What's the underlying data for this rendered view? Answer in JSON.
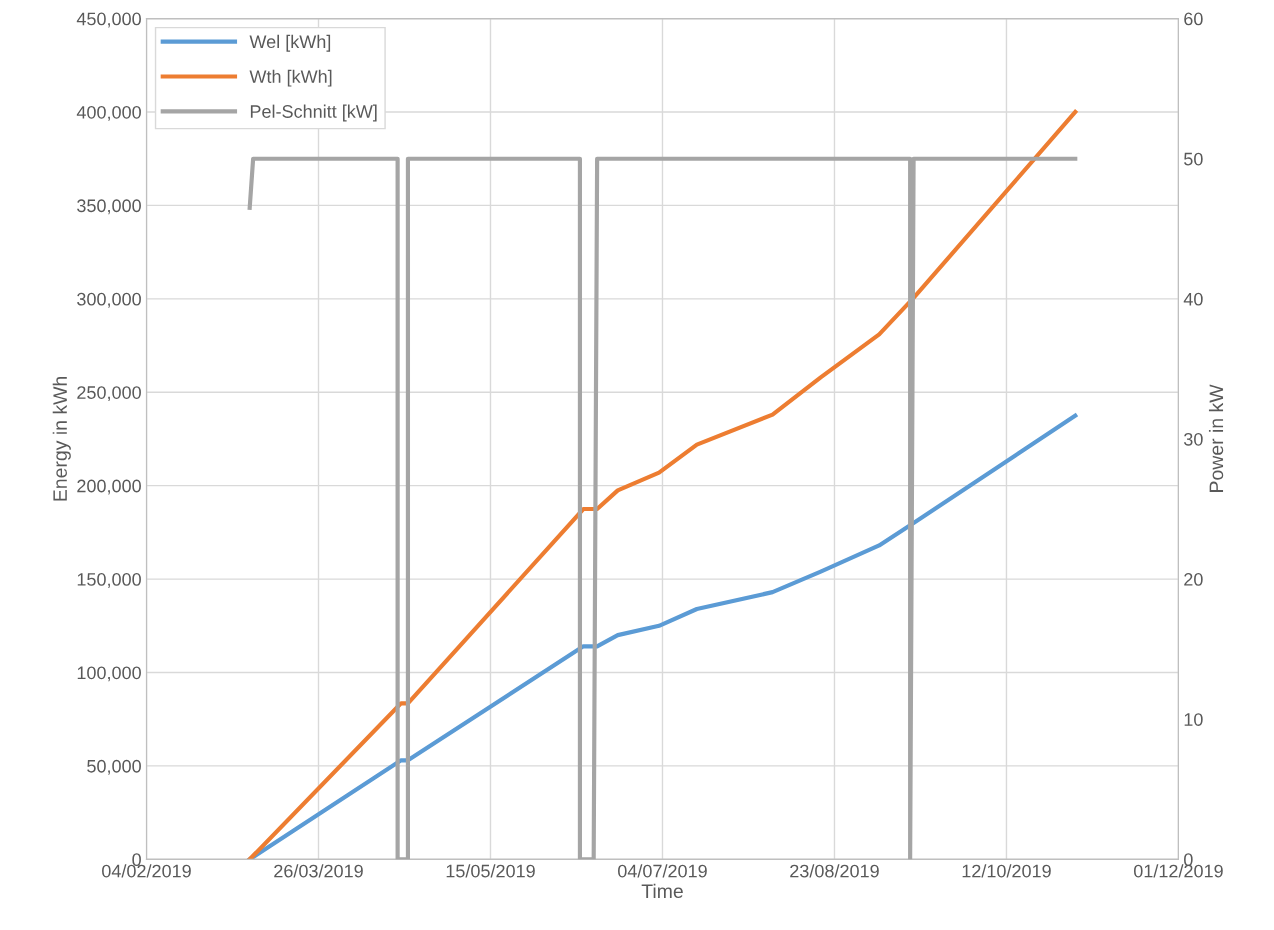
{
  "chart_data": {
    "type": "line",
    "xlabel": "Time",
    "ylabel": "Energy in kWh",
    "y2label": "Power in kW",
    "xlim": [
      "2019-02-04",
      "2019-12-01"
    ],
    "xticks": [
      {
        "value": "2019-02-04",
        "label": "04/02/2019"
      },
      {
        "value": "2019-03-26",
        "label": "26/03/2019"
      },
      {
        "value": "2019-05-15",
        "label": "15/05/2019"
      },
      {
        "value": "2019-07-04",
        "label": "04/07/2019"
      },
      {
        "value": "2019-08-23",
        "label": "23/08/2019"
      },
      {
        "value": "2019-10-12",
        "label": "12/10/2019"
      },
      {
        "value": "2019-12-01",
        "label": "01/12/2019"
      }
    ],
    "ylim": [
      0,
      450000
    ],
    "yticks": [
      {
        "value": 0,
        "label": "0"
      },
      {
        "value": 50000,
        "label": "50,000"
      },
      {
        "value": 100000,
        "label": "100,000"
      },
      {
        "value": 150000,
        "label": "150,000"
      },
      {
        "value": 200000,
        "label": "200,000"
      },
      {
        "value": 250000,
        "label": "250,000"
      },
      {
        "value": 300000,
        "label": "300,000"
      },
      {
        "value": 350000,
        "label": "350,000"
      },
      {
        "value": 400000,
        "label": "400,000"
      },
      {
        "value": 450000,
        "label": "450,000"
      }
    ],
    "y2lim": [
      0,
      60
    ],
    "y2ticks": [
      0,
      10,
      20,
      30,
      40,
      50,
      60
    ],
    "grid": true,
    "legend": "top left",
    "marker": "none",
    "line_style": "solid",
    "series": [
      {
        "name": "Wel [kWh]",
        "color": "#5b9bd5",
        "x": [
          "2019-03-06",
          "2019-04-19",
          "2019-04-21",
          "2019-06-11",
          "2019-06-15",
          "2019-06-21",
          "2019-07-03",
          "2019-07-14",
          "2019-08-05",
          "2019-08-19",
          "2019-09-05",
          "2019-09-15",
          "2019-11-01"
        ],
        "values": [
          0,
          53000,
          53000,
          114000,
          114000,
          120000,
          125000,
          134000,
          143000,
          154000,
          168000,
          180000,
          237500
        ]
      },
      {
        "name": "Wth [kWh]",
        "color": "#ed7d31",
        "x": [
          "2019-03-06",
          "2019-04-19",
          "2019-04-21",
          "2019-06-11",
          "2019-06-15",
          "2019-06-21",
          "2019-07-03",
          "2019-07-14",
          "2019-08-05",
          "2019-08-19",
          "2019-09-05",
          "2019-09-15",
          "2019-11-01"
        ],
        "values": [
          0,
          83500,
          83500,
          187500,
          187500,
          197500,
          207000,
          222000,
          238000,
          258000,
          281000,
          300500,
          400000
        ]
      },
      {
        "name": "Pel-Schnitt [kW]",
        "color": "#a5a5a5",
        "axis": "y2",
        "x": [
          "2019-03-06",
          "2019-03-07",
          "2019-04-18",
          "2019-04-18",
          "2019-04-21",
          "2019-04-21",
          "2019-06-10",
          "2019-06-10",
          "2019-06-14",
          "2019-06-15",
          "2019-09-14",
          "2019-09-14",
          "2019-09-15",
          "2019-11-01"
        ],
        "values": [
          46.5,
          50,
          50,
          0,
          0,
          50,
          50,
          0,
          0,
          50,
          50,
          0,
          50,
          50
        ]
      }
    ]
  }
}
